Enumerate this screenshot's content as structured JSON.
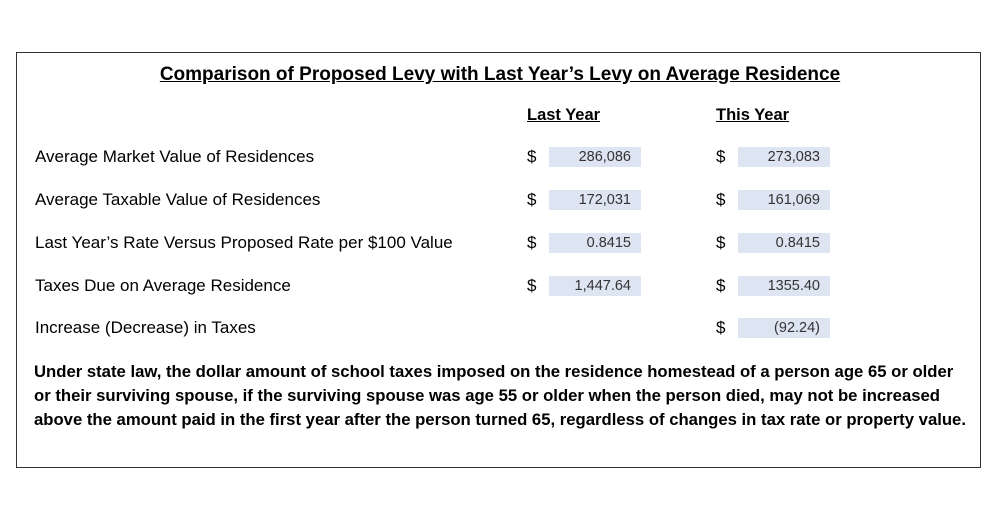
{
  "title": "Comparison of Proposed Levy with Last Year’s Levy on Average Residence",
  "columns": {
    "last_year": "Last Year",
    "this_year": "This Year"
  },
  "currency_symbol": "$",
  "rows": [
    {
      "label": "Average Market Value of Residences",
      "last_year": "286,086",
      "this_year": "273,083"
    },
    {
      "label": "Average Taxable Value of Residences",
      "last_year": "172,031",
      "this_year": "161,069"
    },
    {
      "label": "Last Year’s Rate Versus Proposed Rate per $100 Value",
      "last_year": "0.8415",
      "this_year": "0.8415"
    },
    {
      "label": "Taxes Due on Average Residence",
      "last_year": "1,447.64",
      "this_year": "1355.40"
    },
    {
      "label": "Increase (Decrease) in  Taxes",
      "this_year": "(92.24)"
    }
  ],
  "note": "Under state law, the dollar amount of school taxes imposed on the residence homestead of a person age 65 or older or their surviving spouse, if the surviving spouse was age 55 or older when the person died, may not be increased above the amount paid in the first year after the person turned 65, regardless of changes in tax rate or property value."
}
